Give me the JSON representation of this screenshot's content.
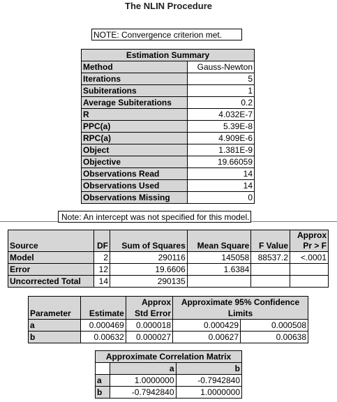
{
  "title": "The NLIN Procedure",
  "note_convergence": "NOTE: Convergence criterion met.",
  "estimation_summary": {
    "title": "Estimation Summary",
    "rows": [
      {
        "label": "Method",
        "value": "Gauss-Newton"
      },
      {
        "label": "Iterations",
        "value": "5"
      },
      {
        "label": "Subiterations",
        "value": "1"
      },
      {
        "label": "Average Subiterations",
        "value": "0.2"
      },
      {
        "label": "R",
        "value": "4.032E-7"
      },
      {
        "label": "PPC(a)",
        "value": "5.39E-8"
      },
      {
        "label": "RPC(a)",
        "value": "4.909E-6"
      },
      {
        "label": "Object",
        "value": "1.381E-9"
      },
      {
        "label": "Objective",
        "value": "19.66059"
      },
      {
        "label": "Observations Read",
        "value": "14"
      },
      {
        "label": "Observations Used",
        "value": "14"
      },
      {
        "label": "Observations Missing",
        "value": "0"
      }
    ]
  },
  "note_intercept": "Note: An intercept was not specified for this model.",
  "anova": {
    "headers": {
      "source": "Source",
      "df": "DF",
      "ss": "Sum of Squares",
      "ms": "Mean Square",
      "f": "F Value",
      "p_line1": "Approx",
      "p_line2": "Pr > F"
    },
    "rows": [
      {
        "source": "Model",
        "df": "2",
        "ss": "290116",
        "ms": "145058",
        "f": "88537.2",
        "p": "<.0001"
      },
      {
        "source": "Error",
        "df": "12",
        "ss": "19.6606",
        "ms": "1.6384",
        "f": "",
        "p": ""
      },
      {
        "source": "Uncorrected Total",
        "df": "14",
        "ss": "290135",
        "ms": "",
        "f": "",
        "p": ""
      }
    ]
  },
  "parameters": {
    "headers": {
      "parameter": "Parameter",
      "estimate": "Estimate",
      "se_line1": "Approx",
      "se_line2": "Std Error",
      "ci_line1": "Approximate 95% Confidence",
      "ci_line2": "Limits"
    },
    "rows": [
      {
        "name": "a",
        "estimate": "0.000469",
        "se": "0.000018",
        "lower": "0.000429",
        "upper": "0.000508"
      },
      {
        "name": "b",
        "estimate": "0.00632",
        "se": "0.000027",
        "lower": "0.00627",
        "upper": "0.00638"
      }
    ]
  },
  "correlation": {
    "title": "Approximate Correlation Matrix",
    "columns": [
      "a",
      "b"
    ],
    "rows": [
      {
        "name": "a",
        "values": [
          "1.0000000",
          "-0.7942840"
        ]
      },
      {
        "name": "b",
        "values": [
          "-0.7942840",
          "1.0000000"
        ]
      }
    ]
  }
}
